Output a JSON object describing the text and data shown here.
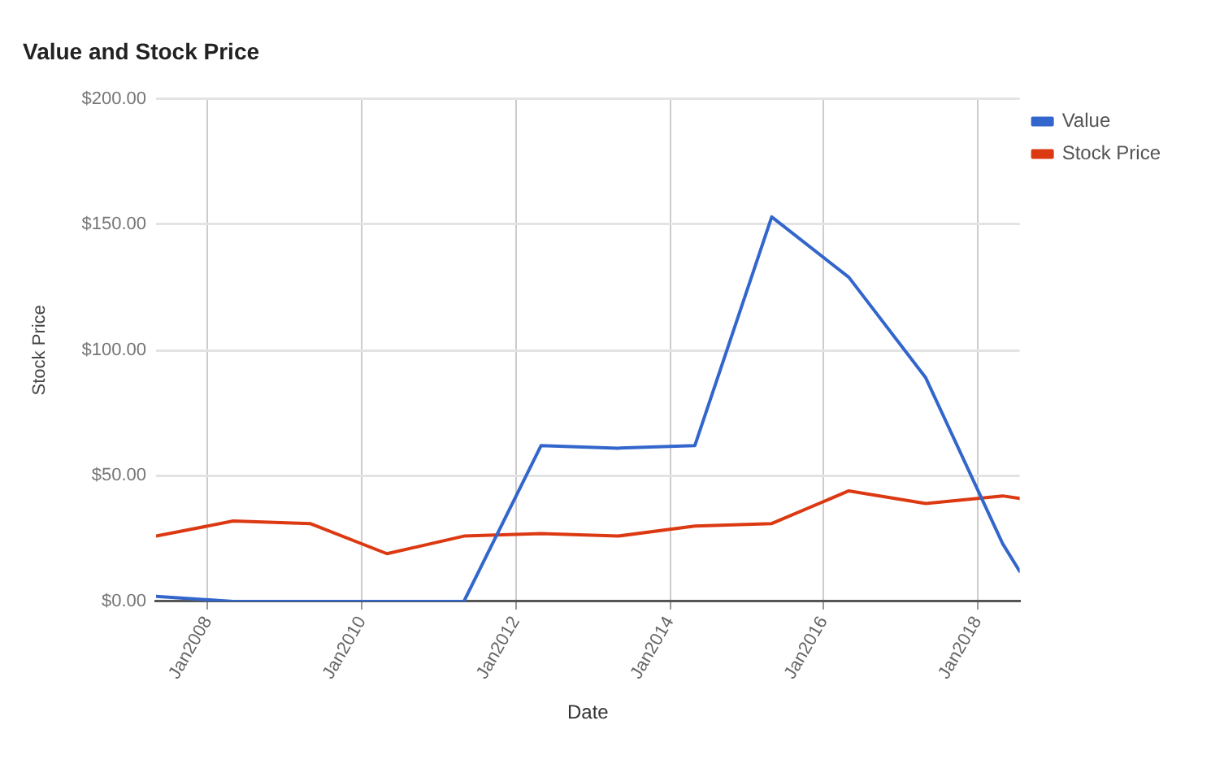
{
  "chart_data": {
    "type": "line",
    "title": "Value and Stock Price",
    "xlabel": "Date",
    "ylabel": "Stock Price",
    "x": [
      "2007-04-30",
      "2008-04-30",
      "2009-04-30",
      "2010-04-30",
      "2011-04-30",
      "2012-04-30",
      "2013-04-30",
      "2014-04-30",
      "2015-04-30",
      "2016-04-30",
      "2017-04-30",
      "2018-04-30",
      "2018-07-20"
    ],
    "series": [
      {
        "name": "Value",
        "color": "#3366cc",
        "values": [
          2,
          0,
          0,
          0,
          0,
          62,
          61,
          62,
          153,
          129,
          89,
          23,
          12
        ]
      },
      {
        "name": "Stock Price",
        "color": "#dc3912",
        "values": [
          26,
          32,
          31,
          19,
          26,
          27,
          26,
          30,
          31,
          44,
          39,
          42,
          41
        ]
      }
    ],
    "xlim": [
      "2007-04-30",
      "2018-07-20"
    ],
    "xticks": [
      {
        "value": "2008-01-01",
        "label": "Jan2008"
      },
      {
        "value": "2010-01-01",
        "label": "Jan2010"
      },
      {
        "value": "2012-01-01",
        "label": "Jan2012"
      },
      {
        "value": "2014-01-01",
        "label": "Jan2014"
      },
      {
        "value": "2016-01-01",
        "label": "Jan2016"
      },
      {
        "value": "2018-01-01",
        "label": "Jan2018"
      }
    ],
    "ylim": [
      0,
      200
    ],
    "yticks": [
      {
        "value": 0,
        "label": "$0.00"
      },
      {
        "value": 50,
        "label": "$50.00"
      },
      {
        "value": 100,
        "label": "$100.00"
      },
      {
        "value": 150,
        "label": "$150.00"
      },
      {
        "value": 200,
        "label": "$200.00"
      }
    ],
    "grid": true,
    "legend": "top right",
    "marker": "none",
    "line_style": "solid"
  }
}
